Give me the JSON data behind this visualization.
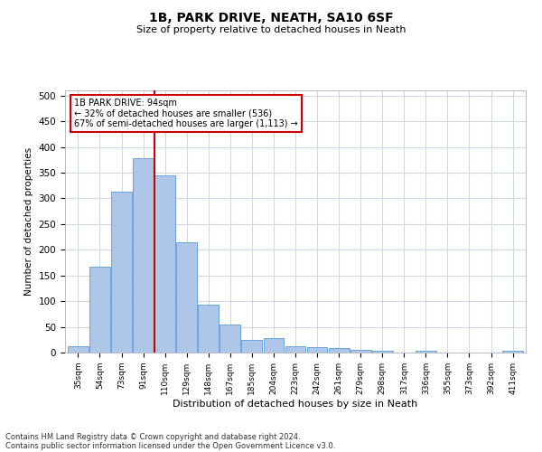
{
  "title": "1B, PARK DRIVE, NEATH, SA10 6SF",
  "subtitle": "Size of property relative to detached houses in Neath",
  "xlabel": "Distribution of detached houses by size in Neath",
  "ylabel": "Number of detached properties",
  "categories": [
    "35sqm",
    "54sqm",
    "73sqm",
    "91sqm",
    "110sqm",
    "129sqm",
    "148sqm",
    "167sqm",
    "185sqm",
    "204sqm",
    "223sqm",
    "242sqm",
    "261sqm",
    "279sqm",
    "298sqm",
    "317sqm",
    "336sqm",
    "355sqm",
    "373sqm",
    "392sqm",
    "411sqm"
  ],
  "values": [
    13,
    167,
    313,
    378,
    345,
    215,
    93,
    54,
    25,
    28,
    13,
    10,
    8,
    6,
    4,
    0,
    3,
    0,
    0,
    0,
    3
  ],
  "bar_color": "#aec7e8",
  "bar_edge_color": "#5b9bd5",
  "red_line_index": 3.5,
  "annotation_text": "1B PARK DRIVE: 94sqm\n← 32% of detached houses are smaller (536)\n67% of semi-detached houses are larger (1,113) →",
  "annotation_box_color": "#ffffff",
  "annotation_box_edge": "#cc0000",
  "red_line_color": "#cc0000",
  "ylim": [
    0,
    510
  ],
  "yticks": [
    0,
    50,
    100,
    150,
    200,
    250,
    300,
    350,
    400,
    450,
    500
  ],
  "footer1": "Contains HM Land Registry data © Crown copyright and database right 2024.",
  "footer2": "Contains public sector information licensed under the Open Government Licence v3.0.",
  "bg_color": "#ffffff",
  "grid_color": "#d0d8e8"
}
